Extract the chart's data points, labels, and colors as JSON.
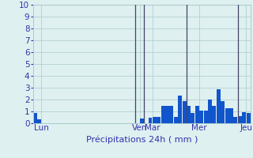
{
  "title": "Précipitations 24h ( mm )",
  "ylabel_values": [
    0,
    1,
    2,
    3,
    4,
    5,
    6,
    7,
    8,
    9,
    10
  ],
  "ylim": [
    0,
    10
  ],
  "background_color": "#dff0f0",
  "bar_color": "#1155cc",
  "grid_color": "#aacaca",
  "bar_data": [
    0.9,
    0.35,
    0,
    0,
    0,
    0,
    0,
    0,
    0,
    0,
    0,
    0,
    0,
    0,
    0,
    0,
    0,
    0,
    0,
    0,
    0,
    0,
    0,
    0,
    0,
    0.4,
    0,
    0.45,
    0.55,
    0.55,
    1.5,
    1.45,
    1.45,
    0.55,
    2.35,
    1.9,
    1.5,
    0.9,
    1.5,
    1.1,
    1.1,
    2.0,
    1.5,
    2.9,
    1.9,
    1.25,
    1.25,
    0.55,
    0.6,
    0.95,
    0.9
  ],
  "day_labels": [
    "Lun",
    "Ven",
    "Mar",
    "Mer",
    "Jeu"
  ],
  "day_tick_positions": [
    1.5,
    24.5,
    27.5,
    38.5,
    49.5
  ],
  "vline_positions": [
    24,
    26,
    36,
    48
  ],
  "vline_color": "#444466",
  "xlabel": "Précipitations 24h ( mm )",
  "xlabel_color": "#3333aa",
  "tick_color": "#3333aa",
  "axis_label_fontsize": 8,
  "tick_fontsize": 7.5
}
